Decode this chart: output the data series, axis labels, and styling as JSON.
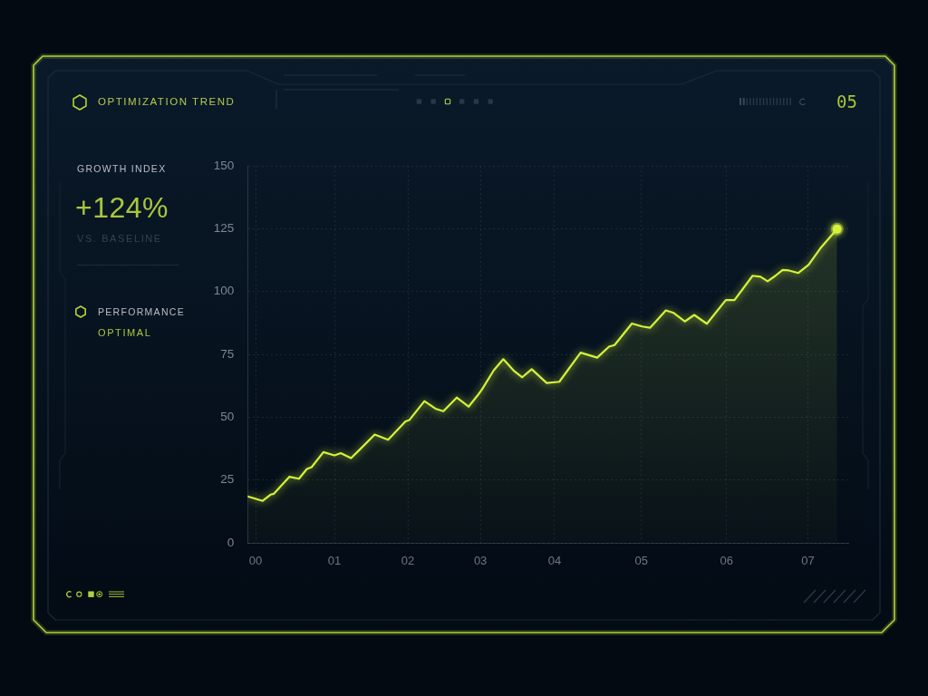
{
  "chart_data": [
    {
      "type": "other",
      "title": "GROWTH INDEX",
      "annotations": [
        "+124%",
        "VS. BASELINE",
        "PERFORMANCE",
        "OPTIMAL"
      ]
    },
    {
      "type": "area",
      "title": "OPTIMIZATION TREND",
      "annotations": [
        "05"
      ],
      "x": [
        -0.1,
        0.09,
        0.19,
        0.23,
        0.43,
        0.55,
        0.65,
        0.71,
        0.86,
        1.0,
        1.08,
        1.21,
        1.32,
        1.51,
        1.68,
        1.9,
        1.95,
        2.14,
        2.28,
        2.38,
        2.55,
        2.7,
        2.81,
        2.87,
        3.02,
        3.14,
        3.27,
        3.38,
        3.5,
        3.69,
        3.85,
        4.12,
        4.33,
        4.48,
        4.55,
        4.77,
        4.9,
        5.0,
        5.2,
        5.3,
        5.44,
        5.56,
        5.72,
        5.96,
        6.07,
        6.3,
        6.4,
        6.49,
        6.59,
        6.68,
        6.76,
        6.88,
        7.01,
        7.16,
        7.37
      ],
      "series": [
        {
          "type": "area",
          "color": "#d4f23c",
          "values": [
            18.5,
            16.7,
            19.2,
            19.5,
            26.3,
            25.5,
            29.4,
            30.1,
            36.1,
            34.8,
            35.7,
            33.7,
            37.1,
            43.1,
            41.0,
            48.3,
            48.9,
            56.4,
            53.4,
            52.4,
            57.8,
            54.2,
            58.5,
            61.1,
            68.7,
            73.1,
            68.6,
            65.9,
            69.1,
            63.6,
            64.1,
            75.7,
            73.7,
            78.1,
            78.7,
            87.3,
            86.1,
            85.6,
            92.5,
            91.5,
            88.1,
            90.7,
            87.2,
            96.6,
            96.6,
            106.3,
            105.9,
            104.1,
            106.3,
            108.6,
            108.4,
            107.4,
            110.7,
            117.3,
            124.9
          ]
        },
        {
          "type": "scatter",
          "color": "#d4f23c",
          "x": [
            7.37
          ],
          "values": [
            124.9
          ]
        }
      ],
      "xlim": [
        -0.1,
        7.52
      ],
      "xticks": [
        {
          "value": 0,
          "label": "00"
        },
        {
          "value": 1,
          "label": "01"
        },
        {
          "value": 1.93,
          "label": "02"
        },
        {
          "value": 2.85,
          "label": "03"
        },
        {
          "value": 3.79,
          "label": "04"
        },
        {
          "value": 4.89,
          "label": "05"
        },
        {
          "value": 5.97,
          "label": "06"
        },
        {
          "value": 7,
          "label": "07"
        }
      ],
      "ylim": [
        0,
        150
      ],
      "yticks": [
        0,
        25,
        50,
        75,
        100,
        125,
        150
      ],
      "grid": true
    }
  ]
}
